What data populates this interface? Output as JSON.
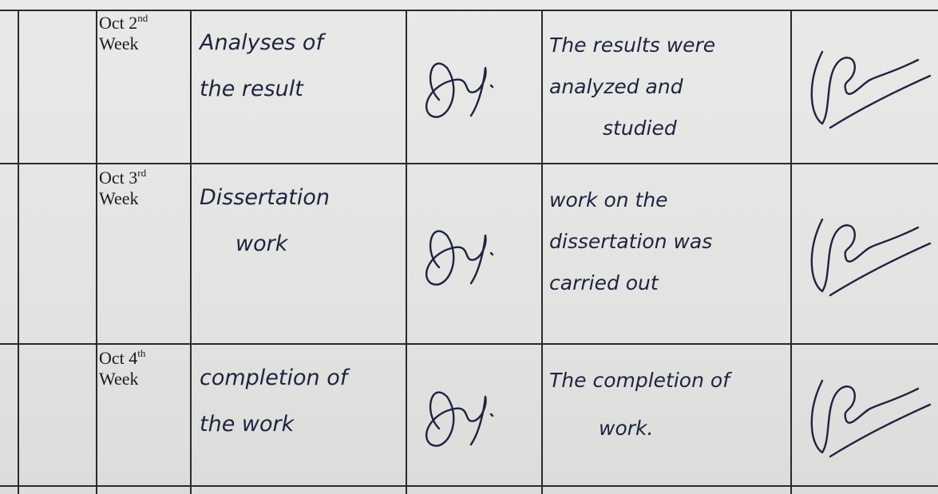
{
  "table": {
    "rows": [
      {
        "month": "Oct 2",
        "suffix": "nd",
        "week": "Week",
        "activity": [
          "Analyses of",
          "the result"
        ],
        "remarks": [
          "The results were",
          "analyzed and",
          "studied"
        ]
      },
      {
        "month": "Oct 3",
        "suffix": "rd",
        "week": "Week",
        "activity": [
          "Dissertation",
          "work"
        ],
        "remarks": [
          "work on the",
          "dissertation was",
          "carried out"
        ]
      },
      {
        "month": "Oct 4",
        "suffix": "th",
        "week": "Week",
        "activity": [
          "completion of",
          "the work"
        ],
        "remarks": [
          "The completion of",
          "work."
        ]
      }
    ]
  }
}
